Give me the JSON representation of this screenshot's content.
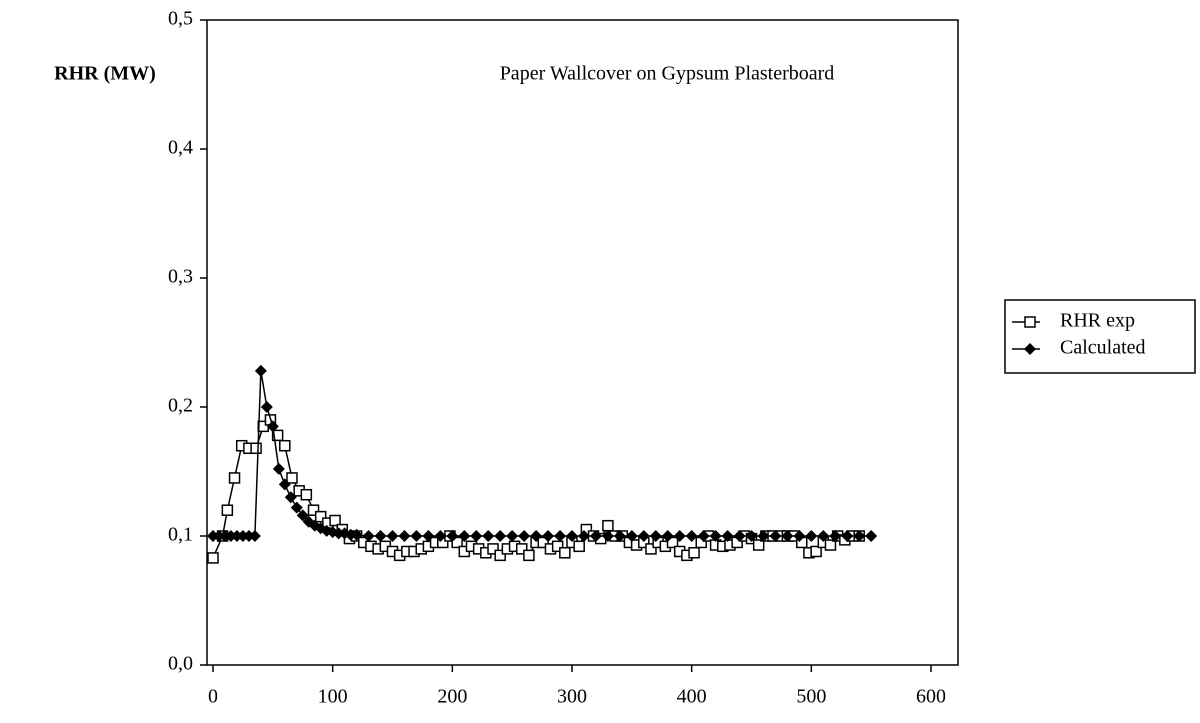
{
  "chart_data": {
    "type": "line",
    "ylabel": "RHR (MW)",
    "annotation": "Paper Wallcover on Gypsum Plasterboard",
    "xlim": [
      0,
      600
    ],
    "xticks": [
      0,
      100,
      200,
      300,
      400,
      500,
      600
    ],
    "ylim": [
      0,
      0.5
    ],
    "yticks": [
      {
        "value": 0,
        "label": "0,0"
      },
      {
        "value": 0.1,
        "label": "0,1"
      },
      {
        "value": 0.2,
        "label": "0,2"
      },
      {
        "value": 0.3,
        "label": "0,3"
      },
      {
        "value": 0.4,
        "label": "0,4"
      },
      {
        "value": 0.5,
        "label": "0,5"
      }
    ],
    "legend": "right",
    "series": [
      {
        "name": "RHR exp",
        "color": "#000000",
        "marker": "square-open",
        "x": [
          0,
          8,
          12,
          18,
          24,
          30,
          36,
          42,
          48,
          54,
          60,
          66,
          72,
          78,
          84,
          90,
          96,
          102,
          108,
          114,
          120,
          126,
          132,
          138,
          144,
          150,
          156,
          162,
          168,
          174,
          180,
          186,
          192,
          198,
          204,
          210,
          216,
          222,
          228,
          234,
          240,
          246,
          252,
          258,
          264,
          270,
          276,
          282,
          288,
          294,
          300,
          306,
          312,
          318,
          324,
          330,
          336,
          342,
          348,
          354,
          360,
          366,
          372,
          378,
          384,
          390,
          396,
          402,
          408,
          414,
          420,
          426,
          432,
          438,
          444,
          450,
          456,
          462,
          468,
          474,
          480,
          486,
          492,
          498,
          504,
          510,
          516,
          522,
          528,
          534,
          540
        ],
        "values": [
          0.083,
          0.1,
          0.12,
          0.145,
          0.17,
          0.168,
          0.168,
          0.185,
          0.19,
          0.178,
          0.17,
          0.145,
          0.135,
          0.132,
          0.12,
          0.115,
          0.11,
          0.112,
          0.105,
          0.098,
          0.1,
          0.095,
          0.092,
          0.09,
          0.092,
          0.088,
          0.085,
          0.088,
          0.088,
          0.09,
          0.092,
          0.095,
          0.095,
          0.1,
          0.095,
          0.088,
          0.092,
          0.09,
          0.087,
          0.09,
          0.085,
          0.09,
          0.092,
          0.09,
          0.085,
          0.095,
          0.095,
          0.09,
          0.092,
          0.087,
          0.095,
          0.092,
          0.105,
          0.1,
          0.098,
          0.108,
          0.1,
          0.1,
          0.095,
          0.093,
          0.095,
          0.09,
          0.095,
          0.092,
          0.095,
          0.088,
          0.085,
          0.087,
          0.095,
          0.1,
          0.093,
          0.092,
          0.093,
          0.095,
          0.1,
          0.098,
          0.093,
          0.1,
          0.1,
          0.1,
          0.1,
          0.1,
          0.095,
          0.087,
          0.088,
          0.095,
          0.093,
          0.1,
          0.097,
          0.1,
          0.1
        ]
      },
      {
        "name": "Calculated",
        "color": "#000000",
        "marker": "diamond",
        "x": [
          0,
          5,
          10,
          15,
          20,
          25,
          30,
          35,
          40,
          45,
          50,
          55,
          60,
          65,
          70,
          75,
          80,
          85,
          90,
          95,
          100,
          105,
          110,
          115,
          120,
          130,
          140,
          150,
          160,
          170,
          180,
          190,
          200,
          210,
          220,
          230,
          240,
          250,
          260,
          270,
          280,
          290,
          300,
          310,
          320,
          330,
          340,
          350,
          360,
          370,
          380,
          390,
          400,
          410,
          420,
          430,
          440,
          450,
          460,
          470,
          480,
          490,
          500,
          510,
          520,
          530,
          540,
          550
        ],
        "values": [
          0.1,
          0.1,
          0.1,
          0.1,
          0.1,
          0.1,
          0.1,
          0.1,
          0.228,
          0.2,
          0.185,
          0.152,
          0.14,
          0.13,
          0.122,
          0.116,
          0.111,
          0.108,
          0.106,
          0.104,
          0.103,
          0.102,
          0.102,
          0.101,
          0.101,
          0.1,
          0.1,
          0.1,
          0.1,
          0.1,
          0.1,
          0.1,
          0.1,
          0.1,
          0.1,
          0.1,
          0.1,
          0.1,
          0.1,
          0.1,
          0.1,
          0.1,
          0.1,
          0.1,
          0.1,
          0.1,
          0.1,
          0.1,
          0.1,
          0.1,
          0.1,
          0.1,
          0.1,
          0.1,
          0.1,
          0.1,
          0.1,
          0.1,
          0.1,
          0.1,
          0.1,
          0.1,
          0.1,
          0.1,
          0.1,
          0.1,
          0.1,
          0.1
        ]
      }
    ]
  }
}
